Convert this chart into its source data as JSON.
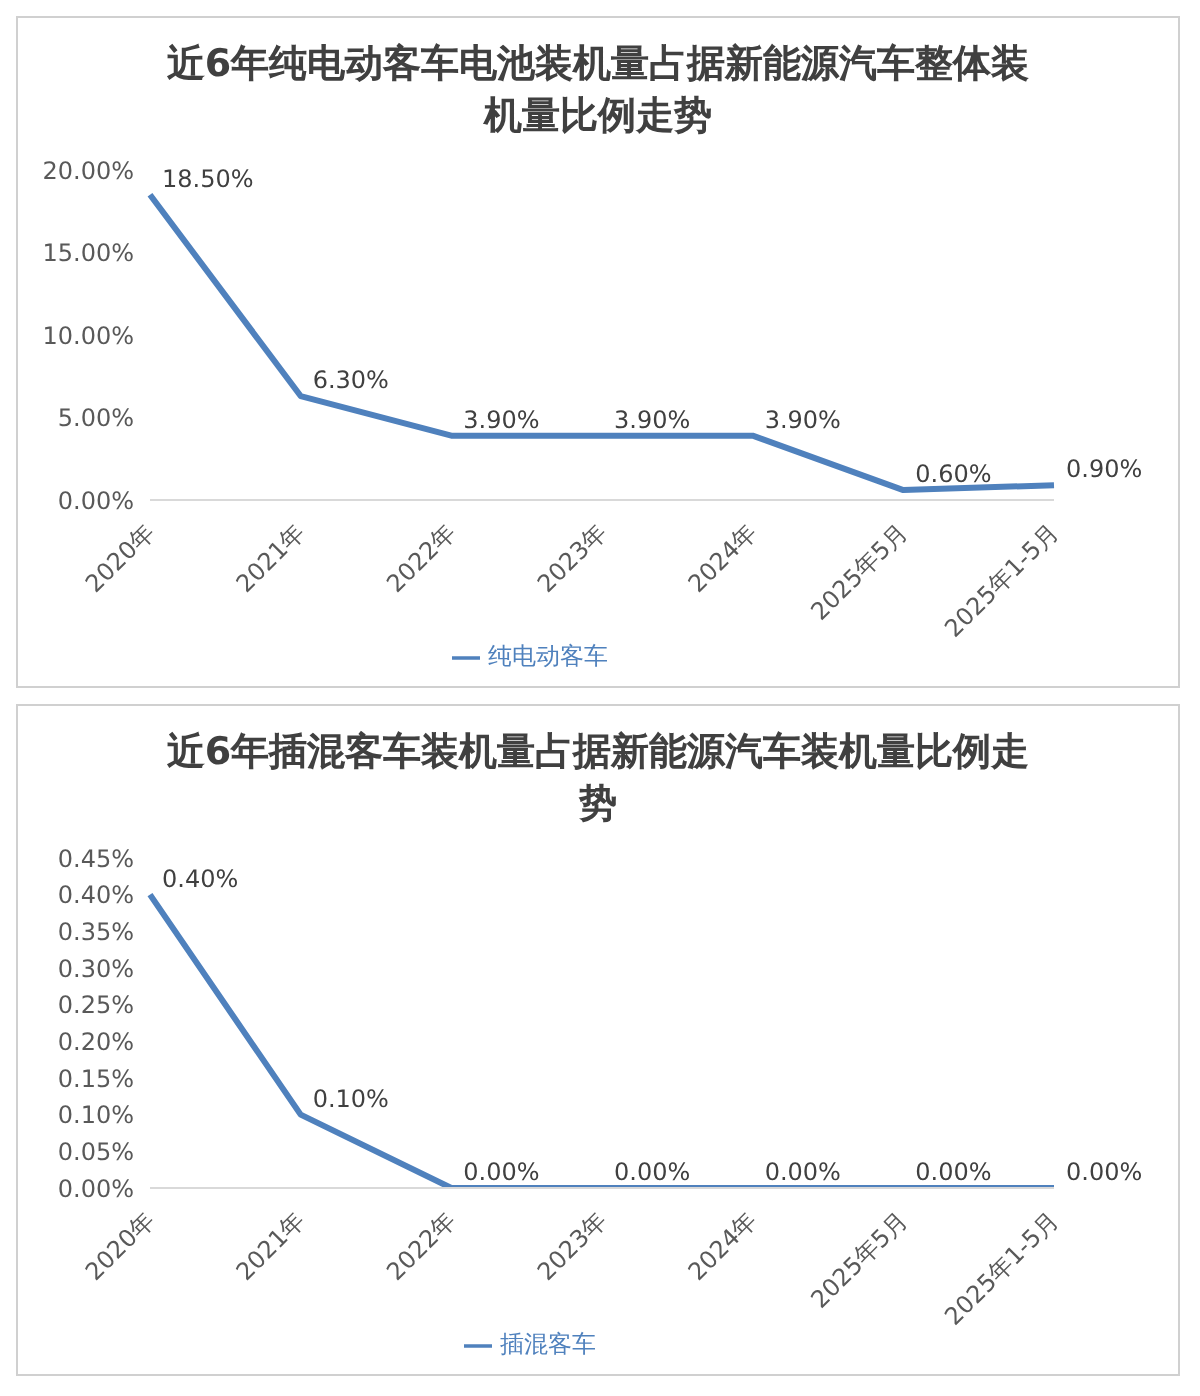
{
  "chart_data": [
    {
      "type": "line",
      "title": "近6年纯电动客车电池装机量占据新能源汽车整体装机量比例走势",
      "categories": [
        "2020年",
        "2021年",
        "2022年",
        "2023年",
        "2024年",
        "2025年5月",
        "2025年1-5月"
      ],
      "series": [
        {
          "name": "纯电动客车",
          "color": "#4f81bd",
          "values": [
            18.5,
            6.3,
            3.9,
            3.9,
            3.9,
            0.6,
            0.9
          ],
          "value_labels": [
            "18.50%",
            "6.30%",
            "3.90%",
            "3.90%",
            "3.90%",
            "0.60%",
            "0.90%"
          ]
        }
      ],
      "ylim": [
        0,
        20
      ],
      "yticks": [
        {
          "value": 0,
          "label": "0.00%"
        },
        {
          "value": 5,
          "label": "5.00%"
        },
        {
          "value": 10,
          "label": "10.00%"
        },
        {
          "value": 15,
          "label": "15.00%"
        },
        {
          "value": 20,
          "label": "20.00%"
        }
      ],
      "grid": false,
      "legend": "bottom",
      "marker": "none",
      "line_style": "solid"
    },
    {
      "type": "line",
      "title": "近6年插混客车装机量占据新能源汽车装机量比例走势",
      "categories": [
        "2020年",
        "2021年",
        "2022年",
        "2023年",
        "2024年",
        "2025年5月",
        "2025年1-5月"
      ],
      "series": [
        {
          "name": "插混客车",
          "color": "#4f81bd",
          "values": [
            0.4,
            0.1,
            0,
            0,
            0,
            0,
            0
          ],
          "value_labels": [
            "0.40%",
            "0.10%",
            "0.00%",
            "0.00%",
            "0.00%",
            "0.00%",
            "0.00%"
          ]
        }
      ],
      "ylim": [
        0,
        0.45
      ],
      "yticks": [
        {
          "value": 0,
          "label": "0.00%"
        },
        {
          "value": 0.05,
          "label": "0.05%"
        },
        {
          "value": 0.1,
          "label": "0.10%"
        },
        {
          "value": 0.15,
          "label": "0.15%"
        },
        {
          "value": 0.2,
          "label": "0.20%"
        },
        {
          "value": 0.25,
          "label": "0.25%"
        },
        {
          "value": 0.3,
          "label": "0.30%"
        },
        {
          "value": 0.35,
          "label": "0.35%"
        },
        {
          "value": 0.4,
          "label": "0.40%"
        },
        {
          "value": 0.45,
          "label": "0.45%"
        }
      ],
      "grid": false,
      "legend": "bottom",
      "marker": "none",
      "line_style": "solid"
    }
  ]
}
